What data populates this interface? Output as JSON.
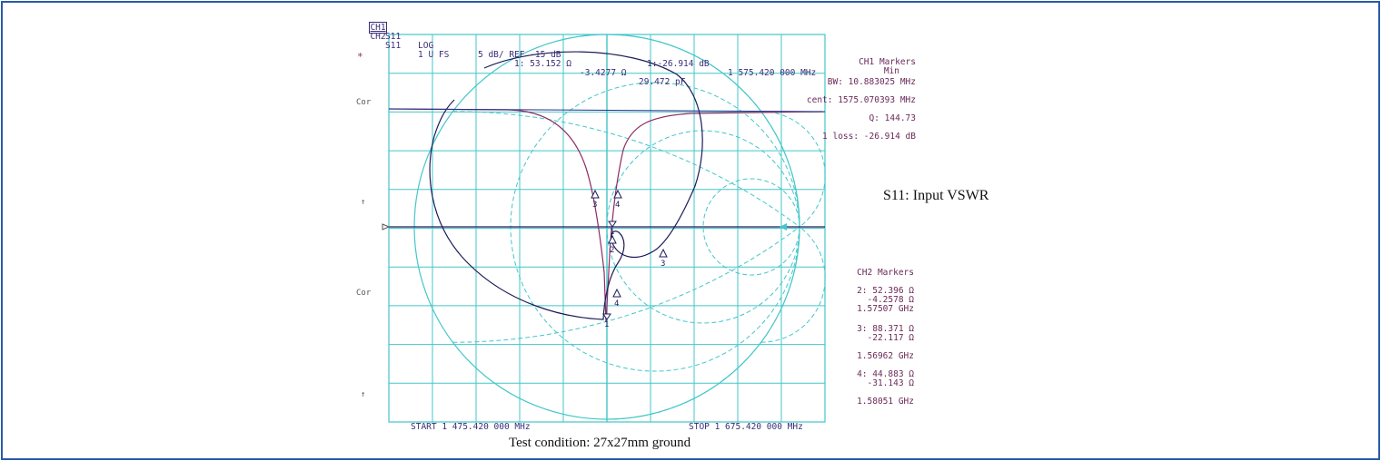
{
  "header": {
    "line1": {
      "ch": "CH1",
      "param": "S11",
      "format": "LOG",
      "scale": "5 dB/ REF -15 dB",
      "marker_readout": "1:-26.914 dB",
      "marker_freq": "1 575.420 000 MHz"
    },
    "line2": {
      "ch": "CH2",
      "param": "S11",
      "format": "1 U FS",
      "marker_readout": "1: 53.152 Ω",
      "reactance": "-3.4277 Ω",
      "capacitance": "29.472 pF"
    }
  },
  "side_labels": {
    "star": "*",
    "cor1": "Cor",
    "arrow1": "↑",
    "cor2": "Cor",
    "arrow2": "↑"
  },
  "ch1_markers": {
    "title": "CH1 Markers",
    "sub": "Min",
    "bw": "BW: 10.883025 MHz",
    "cent": "cent: 1575.070393 MHz",
    "q": "Q: 144.73",
    "loss": "1 loss: -26.914 dB"
  },
  "ch2_markers": {
    "title": "CH2 Markers",
    "m2_r": "2: 52.396 Ω",
    "m2_x": "-4.2578 Ω",
    "m2_f": "1.57507 GHz",
    "m3_r": "3: 88.371 Ω",
    "m3_x": "-22.117 Ω",
    "m3_f": "1.56962 GHz",
    "m4_r": "4: 44.883 Ω",
    "m4_x": "-31.143 Ω",
    "m4_f": "1.58051 GHz"
  },
  "sweep": {
    "start": "START 1 475.420 000 MHz",
    "stop": "STOP 1 675.420 000 MHz"
  },
  "annotations": {
    "s11_label": "S11: Input VSWR",
    "test_condition": "Test condition: 27x27mm ground"
  },
  "colors": {
    "grid": "#43c6c9",
    "log_trace": "#8e2c63",
    "smith_trace": "#1c1c5a",
    "ref_line": "#2a2f88",
    "border": "#2a5aa8"
  },
  "chart_data": {
    "type": "line",
    "title": "",
    "xlabel": "",
    "ylabel": "",
    "x_range_mhz": [
      1475.42,
      1675.42
    ],
    "series": [
      {
        "name": "CH1 S11 LOG",
        "x_mhz": [
          1475.42,
          1500,
          1525,
          1545,
          1555,
          1562,
          1567,
          1569.62,
          1572,
          1574,
          1575.42,
          1577,
          1580.51,
          1585,
          1592,
          1605,
          1625,
          1650,
          1675.42
        ],
        "y_db": [
          -9.6,
          -9.8,
          -10.1,
          -10.8,
          -11.6,
          -13.2,
          -15.6,
          -19.8,
          -23.5,
          -26.0,
          -26.914,
          -25.0,
          -19.8,
          -15.5,
          -13.1,
          -11.2,
          -10.4,
          -10.0,
          -9.8
        ]
      }
    ],
    "markers": [
      {
        "id": "1",
        "freq_mhz": 1575.42,
        "value_db": -26.914,
        "r_ohm": 53.152,
        "x_ohm": -3.4277
      },
      {
        "id": "2",
        "freq_mhz": 1575.07,
        "r_ohm": 52.396,
        "x_ohm": -4.2578
      },
      {
        "id": "3",
        "freq_mhz": 1569.62,
        "r_ohm": 88.371,
        "x_ohm": -22.117
      },
      {
        "id": "4",
        "freq_mhz": 1580.51,
        "r_ohm": 44.883,
        "x_ohm": -31.143
      }
    ],
    "grid": true
  }
}
